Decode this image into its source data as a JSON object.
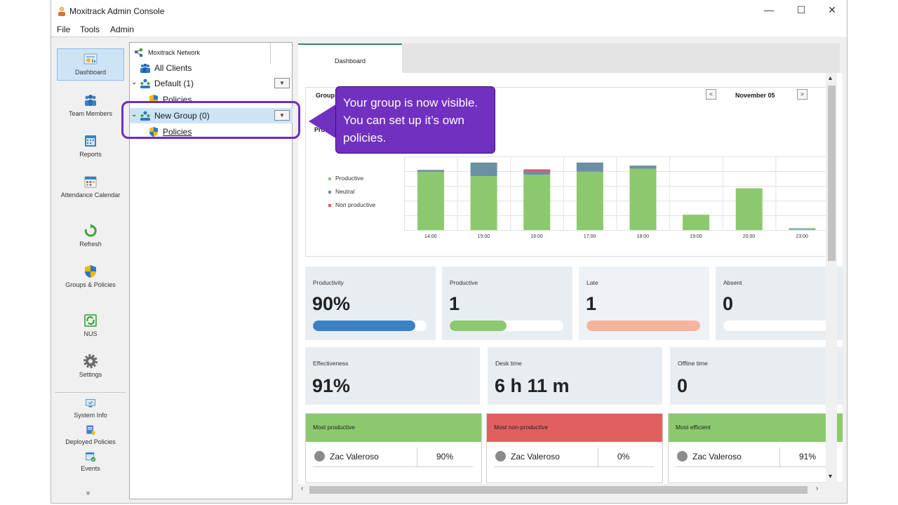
{
  "window": {
    "title": "Moxitrack Admin Console",
    "minimize": "—",
    "maximize": "☐",
    "close": "✕"
  },
  "menu": [
    "File",
    "Tools",
    "Admin"
  ],
  "nav": [
    {
      "label": "Dashboard",
      "icon": "dashboard-icon"
    },
    {
      "label": "Team Members",
      "icon": "team-members-icon"
    },
    {
      "label": "Reports",
      "icon": "reports-icon"
    },
    {
      "label": "Attendance Calendar",
      "icon": "calendar-icon"
    },
    {
      "label": "Refresh",
      "icon": "refresh-icon"
    },
    {
      "label": "Groups & Policies",
      "icon": "shield-icon"
    },
    {
      "label": "NUS",
      "icon": "nus-icon"
    },
    {
      "label": "Settings",
      "icon": "gear-icon"
    },
    {
      "label": "System Info",
      "icon": "monitor-icon"
    },
    {
      "label": "Deployed Policies",
      "icon": "deployed-policies-icon"
    },
    {
      "label": "Events",
      "icon": "events-icon"
    },
    {
      "label": "»",
      "icon": "chevron-down-icon"
    }
  ],
  "tree": {
    "network": "Moxitrack Network",
    "all_clients": "All Clients",
    "default_group": "Default (1)",
    "default_policies": "Policies",
    "new_group": "New Group (0)",
    "new_group_policies": "Policies"
  },
  "callout": {
    "text": "Your group is now visible. You can set up it’s own policies."
  },
  "tab": {
    "label": "Dashboard"
  },
  "dashboard": {
    "groups_label": "Groups",
    "productivity_label": "Pro",
    "date": "November 05",
    "prev": "<",
    "next": ">",
    "legend": [
      {
        "name": "Productive",
        "color": "#8cc96e"
      },
      {
        "name": "Neutral",
        "color": "#6b8fa3"
      },
      {
        "name": "Non productive",
        "color": "#e05a5a"
      }
    ],
    "stats": [
      {
        "title": "Productivity",
        "value": "90%",
        "bar_fraction": 0.9,
        "bar_color": "#3a82c4"
      },
      {
        "title": "Productive",
        "value": "1",
        "bar_fraction": 0.5,
        "bar_color": "#8cc96e"
      },
      {
        "title": "Late",
        "value": "1",
        "bar_fraction": 1.0,
        "bar_color": "#f7b49c"
      },
      {
        "title": "Absent",
        "value": "0",
        "bar_fraction": 0.0,
        "bar_color": "#3a82c4"
      }
    ],
    "stats2": [
      {
        "title": "Effectiveness",
        "value": "91%"
      },
      {
        "title": "Desk time",
        "value": "6 h 11 m"
      },
      {
        "title": "Offline time",
        "value": "0"
      }
    ],
    "most": [
      {
        "title": "Most productive",
        "color": "#8cc96e",
        "name": "Zac Valeroso",
        "value": "90%"
      },
      {
        "title": "Most non-productive",
        "color": "#e06060",
        "name": "Zac Valeroso",
        "value": "0%"
      },
      {
        "title": "Most efficient",
        "color": "#8cc96e",
        "name": "Zac Valeroso",
        "value": "91%"
      }
    ]
  },
  "chart_data": {
    "type": "bar",
    "categories": [
      "14:00",
      "15:00",
      "16:00",
      "17:00",
      "18:00",
      "19:00",
      "20:00",
      "23:00"
    ],
    "series": [
      {
        "name": "Productive",
        "values": [
          0.95,
          0.88,
          0.9,
          0.95,
          1.0,
          0.25,
          0.68,
          0.02
        ]
      },
      {
        "name": "Neutral",
        "values": [
          0.03,
          0.22,
          0.06,
          0.15,
          0.05,
          0,
          0,
          0.01
        ]
      },
      {
        "name": "Non productive",
        "values": [
          0,
          0,
          0.03,
          0,
          0,
          0,
          0,
          0
        ]
      }
    ],
    "ylim": [
      0,
      1.2
    ],
    "grid": true,
    "legend_position": "left"
  }
}
